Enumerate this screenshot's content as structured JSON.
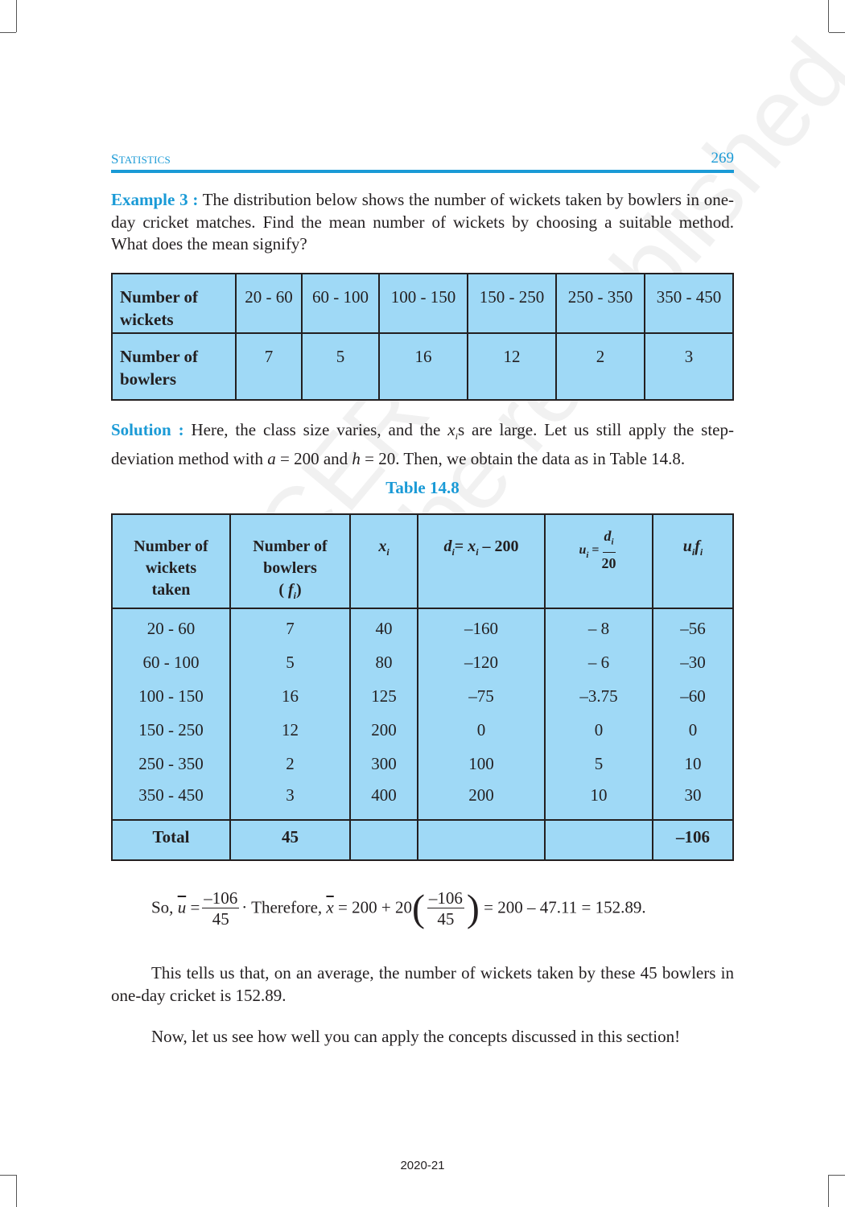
{
  "header": {
    "section_first": "S",
    "section_rest": "TATISTICS",
    "page_number": "269"
  },
  "example": {
    "label": "Example 3 :",
    "text": " The distribution below shows the number of wickets taken by bowlers in one-day cricket matches. Find the mean number of wickets by choosing a suitable method. What does the mean signify?"
  },
  "table1": {
    "row1_header": [
      "Number of",
      "wickets"
    ],
    "row1": [
      "20 - 60",
      "60 - 100",
      "100 - 150",
      "150 - 250",
      "250 - 350",
      "350 - 450"
    ],
    "row2_header": [
      "Number of",
      "bowlers"
    ],
    "row2": [
      "7",
      "5",
      "16",
      "12",
      "2",
      "3"
    ]
  },
  "solution": {
    "label": "Solution :",
    "text1": " Here, the class size varies, and the ",
    "xi": "x",
    "sub_i": "i",
    "text2": "s are large. Let us still apply the step-deviation method with ",
    "a": "a",
    "text3": " = 200 and ",
    "h": "h",
    "text4": " = 20. Then, we obtain the data as in Table 14.8."
  },
  "table2": {
    "caption": "Table  14.8",
    "headers": {
      "col1": [
        "Number of",
        "wickets",
        "taken"
      ],
      "col2": [
        "Number of",
        "bowlers"
      ],
      "col2_sym": "f",
      "sub": "i",
      "col3": "x",
      "col4_d": "d",
      "col4_eq": "= ",
      "col4_x": "x",
      "col4_rest": " – 200",
      "col5_u": "u",
      "col5_eq": " =",
      "col5_num": "d",
      "col5_den": "20",
      "col6_u": "u",
      "col6_f": "f"
    },
    "rows": [
      [
        "20 - 60",
        "7",
        "40",
        "–160",
        "– 8",
        "–56"
      ],
      [
        "60 - 100",
        "5",
        "80",
        "–120",
        "– 6",
        "–30"
      ],
      [
        "100 - 150",
        "16",
        "125",
        "–75",
        "–3.75",
        "–60"
      ],
      [
        "150 - 250",
        "12",
        "200",
        "0",
        "0",
        "0"
      ],
      [
        "250 - 350",
        "2",
        "300",
        "100",
        "5",
        "10"
      ],
      [
        "350 - 450",
        "3",
        "400",
        "200",
        "10",
        "30"
      ]
    ],
    "total": {
      "label": "Total",
      "f": "45",
      "uf": "–106"
    }
  },
  "formula": {
    "so": "So, ",
    "ubar": "u",
    "eq": " =",
    "num": "–106",
    "den": "45",
    "therefore": "· Therefore, ",
    "xbar": "x",
    "mid": " = 200 + ",
    "twenty": "20",
    "end": " = 200 – 47.11 = 152.89."
  },
  "conclusion": "This tells us that, on an average, the number of wickets taken by these 45 bowlers in one-day cricket is 152.89.",
  "closing": "Now, let us see how well you can apply the concepts discussed in this section!",
  "footer": "2020-21",
  "watermark": [
    "© NCERT",
    "not to be republished"
  ],
  "colors": {
    "accent": "#1a9ad6",
    "table_fill": "#9fd9f6"
  }
}
